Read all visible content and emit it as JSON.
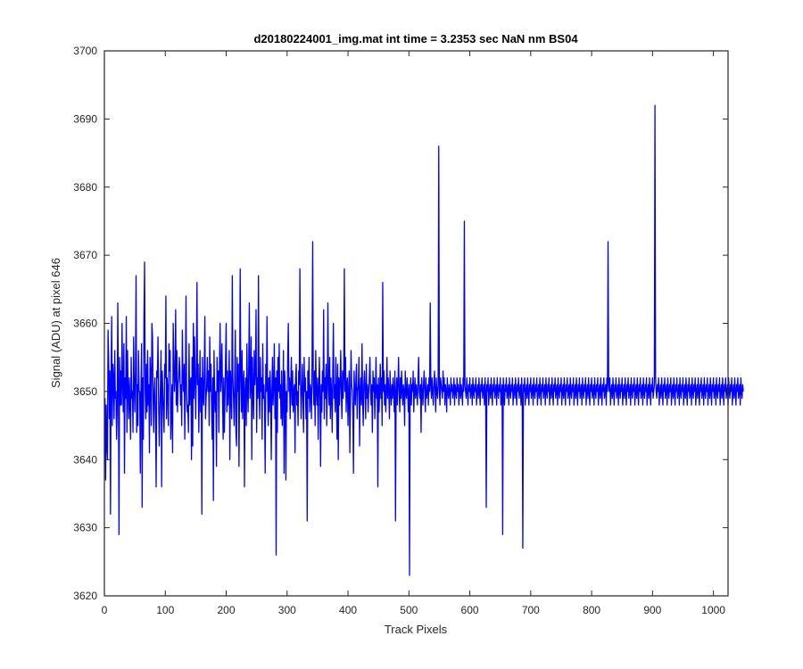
{
  "chart_data": {
    "type": "line",
    "title": "d20180224001_img.mat int time = 3.2353 sec  NaN nm BS04",
    "xlabel": "Track Pixels",
    "ylabel": "Signal (ADU) at pixel 646",
    "xlim": [
      0,
      1024
    ],
    "ylim": [
      3620,
      3700
    ],
    "xticks": [
      0,
      100,
      200,
      300,
      400,
      500,
      600,
      700,
      800,
      900,
      1000
    ],
    "yticks": [
      3620,
      3630,
      3640,
      3650,
      3660,
      3670,
      3680,
      3690,
      3700
    ],
    "xtick_labels": [
      "0",
      "100",
      "200",
      "300",
      "400",
      "500",
      "600",
      "700",
      "800",
      "900",
      "1000"
    ],
    "ytick_labels": [
      "3620",
      "3630",
      "3640",
      "3650",
      "3660",
      "3670",
      "3680",
      "3690",
      "3700"
    ],
    "grid": false,
    "legend": false,
    "series": [
      {
        "color": "#0000ff",
        "x_start": 1,
        "x_step": 1,
        "values": [
          3649,
          3637,
          3648,
          3642,
          3640,
          3659,
          3655,
          3646,
          3653,
          3632,
          3652,
          3661,
          3645,
          3654,
          3652,
          3646,
          3656,
          3649,
          3650,
          3643,
          3647,
          3663,
          3651,
          3629,
          3655,
          3648,
          3653,
          3648,
          3660,
          3651,
          3647,
          3657,
          3638,
          3652,
          3649,
          3661,
          3644,
          3656,
          3650,
          3646,
          3652,
          3648,
          3643,
          3655,
          3649,
          3650,
          3644,
          3658,
          3651,
          3647,
          3653,
          3667,
          3644,
          3651,
          3645,
          3656,
          3650,
          3650,
          3638,
          3650,
          3657,
          3633,
          3652,
          3643,
          3661,
          3669,
          3650,
          3646,
          3654,
          3647,
          3656,
          3648,
          3651,
          3641,
          3655,
          3652,
          3645,
          3660,
          3658,
          3649,
          3644,
          3650,
          3652,
          3646,
          3636,
          3653,
          3652,
          3658,
          3649,
          3642,
          3647,
          3651,
          3656,
          3636,
          3653,
          3650,
          3647,
          3644,
          3654,
          3652,
          3664,
          3646,
          3652,
          3650,
          3645,
          3657,
          3653,
          3656,
          3643,
          3647,
          3651,
          3641,
          3660,
          3655,
          3650,
          3652,
          3662,
          3648,
          3656,
          3647,
          3651,
          3652,
          3655,
          3653,
          3648,
          3651,
          3645,
          3659,
          3652,
          3650,
          3654,
          3643,
          3651,
          3664,
          3650,
          3647,
          3648,
          3644,
          3657,
          3648,
          3651,
          3652,
          3640,
          3655,
          3642,
          3660,
          3649,
          3658,
          3652,
          3646,
          3653,
          3666,
          3651,
          3654,
          3644,
          3650,
          3656,
          3647,
          3652,
          3632,
          3655,
          3650,
          3648,
          3653,
          3661,
          3646,
          3649,
          3651,
          3655,
          3650,
          3653,
          3645,
          3658,
          3650,
          3654,
          3648,
          3643,
          3652,
          3634,
          3656,
          3650,
          3647,
          3650,
          3639,
          3655,
          3650,
          3653,
          3644,
          3654,
          3660,
          3650,
          3652,
          3657,
          3649,
          3643,
          3652,
          3644,
          3649,
          3655,
          3660,
          3647,
          3653,
          3648,
          3651,
          3656,
          3640,
          3653,
          3650,
          3646,
          3667,
          3652,
          3649,
          3645,
          3652,
          3659,
          3644,
          3642,
          3655,
          3650,
          3654,
          3639,
          3651,
          3668,
          3652,
          3647,
          3656,
          3646,
          3651,
          3653,
          3636,
          3650,
          3652,
          3645,
          3657,
          3650,
          3647,
          3654,
          3663,
          3649,
          3651,
          3658,
          3640,
          3655,
          3650,
          3646,
          3656,
          3651,
          3653,
          3662,
          3644,
          3652,
          3649,
          3667,
          3650,
          3646,
          3655,
          3650,
          3652,
          3643,
          3657,
          3649,
          3651,
          3648,
          3638,
          3654,
          3650,
          3661,
          3650,
          3645,
          3652,
          3647,
          3653,
          3650,
          3640,
          3650,
          3655,
          3648,
          3651,
          3657,
          3646,
          3652,
          3626,
          3653,
          3644,
          3655,
          3650,
          3657,
          3649,
          3651,
          3646,
          3653,
          3645,
          3648,
          3656,
          3638,
          3653,
          3650,
          3637,
          3650,
          3647,
          3655,
          3660,
          3650,
          3652,
          3646,
          3651,
          3655,
          3648,
          3653,
          3647,
          3650,
          3651,
          3641,
          3652,
          3654,
          3648,
          3650,
          3645,
          3653,
          3651,
          3668,
          3652,
          3646,
          3650,
          3654,
          3649,
          3644,
          3655,
          3650,
          3652,
          3646,
          3650,
          3631,
          3653,
          3649,
          3655,
          3647,
          3651,
          3650,
          3646,
          3654,
          3672,
          3651,
          3648,
          3653,
          3645,
          3656,
          3650,
          3648,
          3652,
          3643,
          3650,
          3655,
          3649,
          3639,
          3651,
          3647,
          3653,
          3650,
          3662,
          3646,
          3652,
          3649,
          3654,
          3645,
          3650,
          3663,
          3651,
          3648,
          3655,
          3646,
          3652,
          3650,
          3644,
          3653,
          3660,
          3649,
          3651,
          3647,
          3655,
          3650,
          3643,
          3654,
          3640,
          3652,
          3648,
          3651,
          3656,
          3650,
          3646,
          3653,
          3649,
          3652,
          3668,
          3650,
          3655,
          3647,
          3651,
          3652,
          3645,
          3650,
          3653,
          3641,
          3649,
          3656,
          3651,
          3650,
          3647,
          3638,
          3653,
          3650,
          3648,
          3652,
          3654,
          3646,
          3650,
          3651,
          3655,
          3642,
          3650,
          3652,
          3648,
          3657,
          3649,
          3645,
          3651,
          3653,
          3650,
          3646,
          3654,
          3649,
          3651,
          3647,
          3650,
          3652,
          3655,
          3650,
          3648,
          3651,
          3644,
          3653,
          3650,
          3652,
          3646,
          3650,
          3655,
          3649,
          3651,
          3636,
          3652,
          3647,
          3650,
          3654,
          3649,
          3652,
          3645,
          3666,
          3650,
          3653,
          3648,
          3651,
          3647,
          3650,
          3655,
          3649,
          3652,
          3650,
          3646,
          3653,
          3650,
          3648,
          3651,
          3649,
          3652,
          3650,
          3647,
          3653,
          3631,
          3650,
          3652,
          3648,
          3651,
          3655,
          3650,
          3647,
          3652,
          3649,
          3653,
          3650,
          3648,
          3651,
          3650,
          3645,
          3653,
          3650,
          3649,
          3652,
          3650,
          3647,
          3651,
          3623,
          3650,
          3652,
          3648,
          3651,
          3650,
          3653,
          3647,
          3650,
          3652,
          3649,
          3651,
          3650,
          3648,
          3652,
          3655,
          3650,
          3649,
          3651,
          3644,
          3652,
          3650,
          3648,
          3651,
          3653,
          3650,
          3647,
          3652,
          3649,
          3650,
          3651,
          3648,
          3652,
          3650,
          3663,
          3651,
          3649,
          3652,
          3650,
          3648,
          3651,
          3653,
          3650,
          3647,
          3652,
          3650,
          3649,
          3651,
          3686,
          3650,
          3648,
          3652,
          3651,
          3650,
          3649,
          3653,
          3650,
          3652,
          3648,
          3651,
          3650,
          3647,
          3652,
          3650,
          3649,
          3651,
          3650,
          3648,
          3652,
          3650,
          3651,
          3649,
          3650,
          3652,
          3648,
          3651,
          3650,
          3649,
          3652,
          3650,
          3651,
          3648,
          3650,
          3652,
          3649,
          3651,
          3650,
          3648,
          3652,
          3650,
          3675,
          3651,
          3650,
          3649,
          3652,
          3650,
          3648,
          3651,
          3650,
          3652,
          3649,
          3650,
          3651,
          3648,
          3652,
          3650,
          3649,
          3651,
          3650,
          3652,
          3648,
          3650,
          3651,
          3649,
          3652,
          3650,
          3648,
          3651,
          3650,
          3652,
          3649,
          3650,
          3651,
          3648,
          3652,
          3650,
          3633,
          3651,
          3650,
          3652,
          3648,
          3650,
          3651,
          3649,
          3652,
          3650,
          3648,
          3651,
          3650,
          3652,
          3649,
          3650,
          3651,
          3648,
          3652,
          3650,
          3649,
          3651,
          3650,
          3652,
          3648,
          3650,
          3651,
          3629,
          3652,
          3650,
          3648,
          3651,
          3650,
          3652,
          3649,
          3650,
          3651,
          3648,
          3652,
          3650,
          3649,
          3651,
          3650,
          3652,
          3648,
          3650,
          3651,
          3649,
          3652,
          3650,
          3648,
          3651,
          3650,
          3652,
          3649,
          3650,
          3651,
          3648,
          3652,
          3650,
          3627,
          3651,
          3650,
          3652,
          3648,
          3650,
          3651,
          3649,
          3652,
          3650,
          3648,
          3651,
          3650,
          3652,
          3649,
          3650,
          3651,
          3648,
          3652,
          3650,
          3649,
          3651,
          3650,
          3652,
          3648,
          3650,
          3651,
          3649,
          3652,
          3650,
          3648,
          3651,
          3650,
          3652,
          3649,
          3650,
          3651,
          3648,
          3652,
          3650,
          3649,
          3651,
          3650,
          3652,
          3648,
          3650,
          3651,
          3649,
          3652,
          3650,
          3648,
          3651,
          3650,
          3652,
          3649,
          3650,
          3651,
          3648,
          3652,
          3650,
          3649,
          3651,
          3650,
          3652,
          3648,
          3650,
          3651,
          3649,
          3652,
          3650,
          3648,
          3651,
          3650,
          3652,
          3649,
          3650,
          3651,
          3648,
          3652,
          3650,
          3649,
          3651,
          3650,
          3652,
          3648,
          3650,
          3651,
          3649,
          3652,
          3650,
          3648,
          3651,
          3650,
          3652,
          3649,
          3650,
          3651,
          3648,
          3652,
          3650,
          3649,
          3651,
          3650,
          3652,
          3648,
          3650,
          3651,
          3649,
          3652,
          3650,
          3648,
          3651,
          3650,
          3652,
          3649,
          3650,
          3651,
          3648,
          3652,
          3650,
          3649,
          3651,
          3650,
          3652,
          3648,
          3650,
          3651,
          3649,
          3652,
          3650,
          3648,
          3651,
          3650,
          3652,
          3649,
          3650,
          3651,
          3648,
          3652,
          3650,
          3672,
          3651,
          3650,
          3652,
          3648,
          3650,
          3651,
          3649,
          3652,
          3650,
          3648,
          3651,
          3650,
          3652,
          3649,
          3650,
          3651,
          3648,
          3652,
          3650,
          3649,
          3651,
          3650,
          3652,
          3648,
          3650,
          3651,
          3649,
          3652,
          3650,
          3648,
          3651,
          3650,
          3652,
          3649,
          3650,
          3651,
          3648,
          3652,
          3650,
          3649,
          3651,
          3650,
          3652,
          3648,
          3650,
          3651,
          3649,
          3652,
          3650,
          3648,
          3651,
          3650,
          3652,
          3649,
          3650,
          3651,
          3648,
          3652,
          3650,
          3649,
          3651,
          3650,
          3652,
          3648,
          3650,
          3651,
          3649,
          3652,
          3650,
          3648,
          3651,
          3650,
          3652,
          3649,
          3650,
          3651,
          3692,
          3652,
          3650,
          3649,
          3651,
          3650,
          3652,
          3648,
          3650,
          3651,
          3649,
          3652,
          3650,
          3648,
          3651,
          3650,
          3652,
          3649,
          3650,
          3651,
          3648,
          3652,
          3650,
          3649,
          3651,
          3650,
          3652,
          3648,
          3650,
          3651,
          3649,
          3652,
          3650,
          3648,
          3651,
          3650,
          3652,
          3649,
          3650,
          3651,
          3648,
          3652,
          3650,
          3649,
          3651,
          3650,
          3652,
          3648,
          3650,
          3651,
          3649,
          3652,
          3650,
          3648,
          3651,
          3650,
          3652,
          3649,
          3650,
          3651,
          3648,
          3652,
          3650,
          3649,
          3651,
          3650,
          3652,
          3648,
          3650,
          3651,
          3649,
          3652,
          3650,
          3648,
          3651,
          3650,
          3652,
          3649,
          3650,
          3651,
          3648,
          3652,
          3650,
          3649,
          3651,
          3650,
          3652,
          3648,
          3650,
          3651,
          3649,
          3652,
          3650,
          3648,
          3651,
          3650,
          3652,
          3649,
          3650,
          3651,
          3648,
          3652,
          3650,
          3649,
          3651,
          3650,
          3652,
          3648,
          3650,
          3651,
          3649,
          3652,
          3650,
          3648,
          3651,
          3650,
          3652,
          3649,
          3650,
          3651,
          3648,
          3652,
          3650,
          3649,
          3651,
          3650,
          3652,
          3648,
          3650,
          3651,
          3649,
          3652,
          3650,
          3648,
          3651,
          3650,
          3652,
          3649,
          3650,
          3651,
          3648,
          3652,
          3650,
          3649,
          3651,
          3650
        ]
      }
    ]
  }
}
